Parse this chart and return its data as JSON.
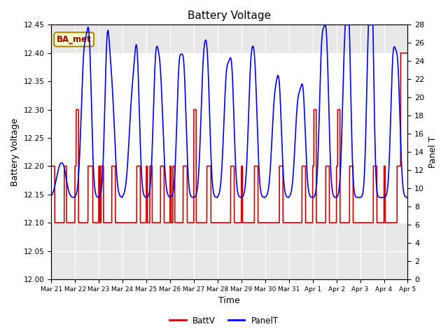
{
  "title": "Battery Voltage",
  "xlabel": "Time",
  "ylabel_left": "Battery Voltage",
  "ylabel_right": "Panel T",
  "annotation_text": "BA_met",
  "annotation_bg": "#ffffcc",
  "annotation_border": "#aa8800",
  "ylim_left": [
    12.0,
    12.45
  ],
  "ylim_right": [
    0,
    28
  ],
  "yticks_left": [
    12.0,
    12.05,
    12.1,
    12.15,
    12.2,
    12.25,
    12.3,
    12.35,
    12.4,
    12.45
  ],
  "yticks_right": [
    0,
    2,
    4,
    6,
    8,
    10,
    12,
    14,
    16,
    18,
    20,
    22,
    24,
    26,
    28
  ],
  "xtick_labels": [
    "Mar 21",
    "Mar 22",
    "Mar 23",
    "Mar 24",
    "Mar 25",
    "Mar 26",
    "Mar 27",
    "Mar 28",
    "Mar 29",
    "Mar 30",
    "Mar 31",
    "Apr 1",
    "Apr 2",
    "Apr 3",
    "Apr 4",
    "Apr 5"
  ],
  "color_batt": "#cc0000",
  "color_panel": "#0000ee",
  "legend_entries": [
    "BattV",
    "PanelT"
  ],
  "background_color": "#ffffff",
  "plot_bg_color": "#e8e8e8",
  "shaded_band_white": [
    12.1,
    12.4
  ],
  "n_days": 15
}
